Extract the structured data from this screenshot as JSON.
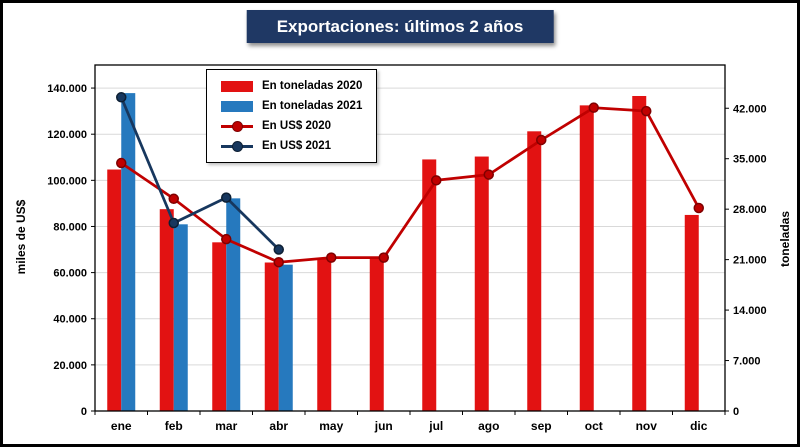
{
  "colors": {
    "title_bg": "#1F3864",
    "title_text": "#FFFFFF",
    "gridline": "#D9D9D9",
    "plot_border": "#000000",
    "bar_2020": "#E21212",
    "bar_2021": "#2679BE",
    "line_2020": "#C00000",
    "line_2021": "#17375E"
  },
  "chart_data": {
    "type": "combo-bar-line",
    "title": "Exportaciones: últimos 2 años",
    "categories": [
      "ene",
      "feb",
      "mar",
      "abr",
      "may",
      "jun",
      "jul",
      "ago",
      "sep",
      "oct",
      "nov",
      "dic"
    ],
    "bar_series": [
      {
        "name": "En toneladas 2020",
        "axis": "right",
        "color": "#E21212",
        "values": [
          33500,
          28000,
          23400,
          20600,
          21200,
          21300,
          34900,
          35300,
          38800,
          42400,
          43700,
          27200
        ]
      },
      {
        "name": "En toneladas 2021",
        "axis": "right",
        "color": "#2679BE",
        "values": [
          44100,
          25900,
          29500,
          20300,
          null,
          null,
          null,
          null,
          null,
          null,
          null,
          null
        ]
      }
    ],
    "line_series": [
      {
        "name": "En US$ 2020",
        "axis": "left",
        "color": "#C00000",
        "marker_border": "#7F0000",
        "values": [
          107500,
          92000,
          74500,
          64500,
          66500,
          66500,
          100000,
          102500,
          117500,
          131500,
          130000,
          88000
        ]
      },
      {
        "name": "En US$ 2021",
        "axis": "left",
        "color": "#17375E",
        "marker_border": "#0D1F33",
        "values": [
          136000,
          81500,
          92500,
          70000,
          null,
          null,
          null,
          null,
          null,
          null,
          null,
          null
        ]
      }
    ],
    "left_axis": {
      "title": "miles de US$",
      "max": 150000,
      "tick_values": [
        0,
        20000,
        40000,
        60000,
        80000,
        100000,
        120000,
        140000
      ],
      "tick_labels": [
        "0",
        "20.000",
        "40.000",
        "60.000",
        "80.000",
        "100.000",
        "120.000",
        "140.000"
      ]
    },
    "right_axis": {
      "title": "toneladas",
      "max": 48000,
      "tick_values": [
        0,
        7000,
        14000,
        21000,
        28000,
        35000,
        42000
      ],
      "tick_labels": [
        "0",
        "7.000",
        "14.000",
        "21.000",
        "28.000",
        "35.000",
        "42.000"
      ]
    },
    "legend_position": "top-left-inside",
    "grid": true
  }
}
